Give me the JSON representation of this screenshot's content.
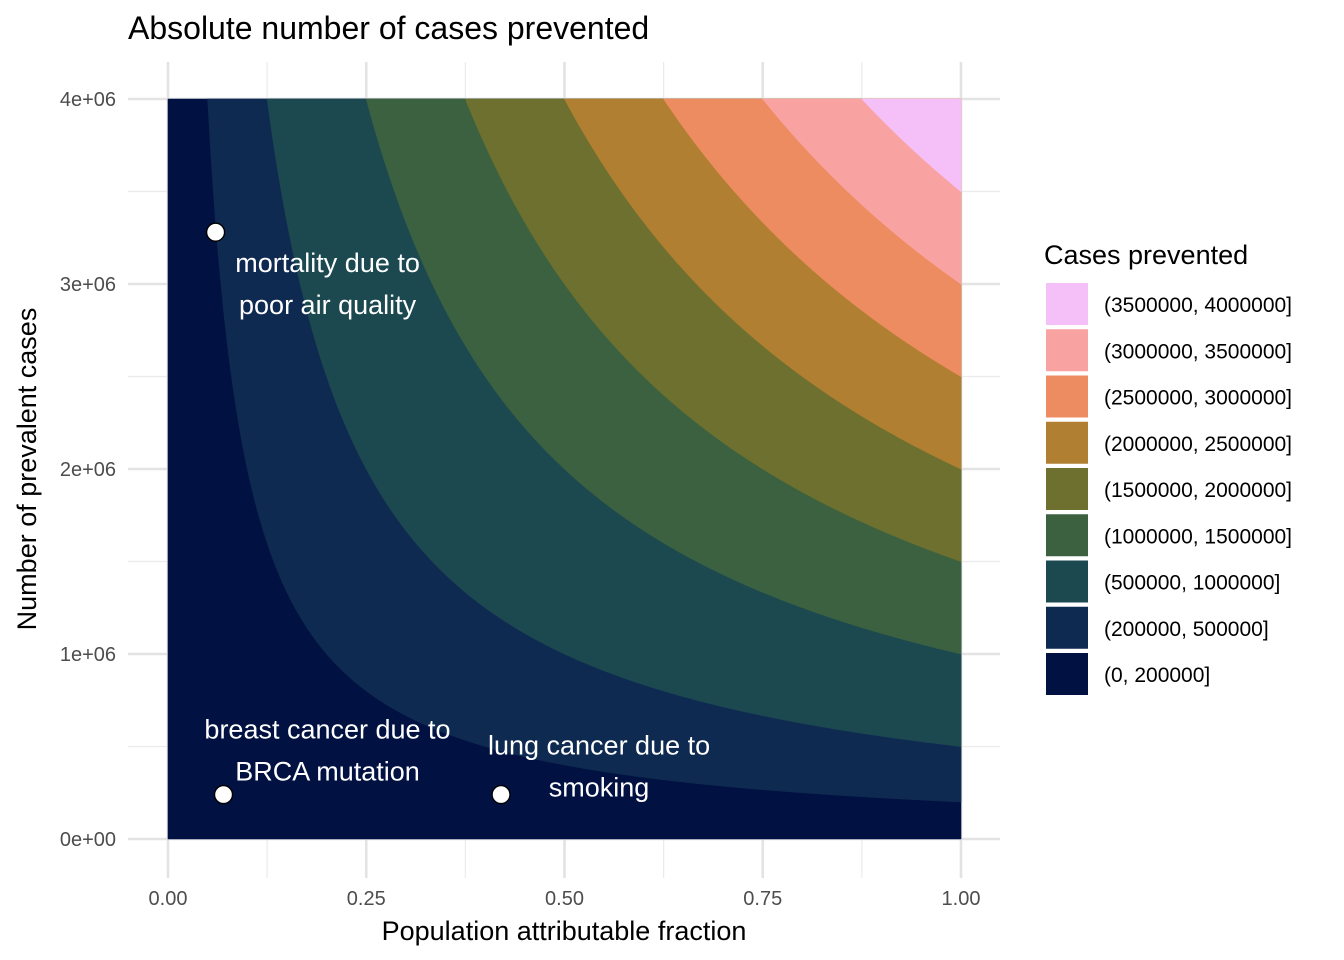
{
  "chart_data": {
    "type": "filled-contour",
    "title": "Absolute number of cases prevented",
    "xlabel": "Population attributable fraction",
    "ylabel": "Number of prevalent cases",
    "xlim": [
      0,
      1
    ],
    "ylim": [
      0,
      4000000
    ],
    "x_ticks": [
      {
        "value": 0,
        "label": "0.00"
      },
      {
        "value": 0.25,
        "label": "0.25"
      },
      {
        "value": 0.5,
        "label": "0.50"
      },
      {
        "value": 0.75,
        "label": "0.75"
      },
      {
        "value": 1,
        "label": "1.00"
      }
    ],
    "y_ticks": [
      {
        "value": 0,
        "label": "0e+00"
      },
      {
        "value": 1000000,
        "label": "1e+06"
      },
      {
        "value": 2000000,
        "label": "2e+06"
      },
      {
        "value": 3000000,
        "label": "3e+06"
      },
      {
        "value": 4000000,
        "label": "4e+06"
      }
    ],
    "x_minor_gridlines": [
      0.125,
      0.375,
      0.625,
      0.875
    ],
    "y_minor_gridlines": [
      500000,
      1500000,
      2500000,
      3500000
    ],
    "grid": true,
    "z_formula": "x * y",
    "legend_title": "Cases prevented",
    "legend_position": "right",
    "bands": [
      {
        "label": "(0, 200000]",
        "lo": 0,
        "hi": 200000,
        "color": "#001142"
      },
      {
        "label": "(200000, 500000]",
        "lo": 200000,
        "hi": 500000,
        "color": "#0F2A50"
      },
      {
        "label": "(500000, 1000000]",
        "lo": 500000,
        "hi": 1000000,
        "color": "#1C4850"
      },
      {
        "label": "(1000000, 1500000]",
        "lo": 1000000,
        "hi": 1500000,
        "color": "#3C6140"
      },
      {
        "label": "(1500000, 2000000]",
        "lo": 1500000,
        "hi": 2000000,
        "color": "#6D702E"
      },
      {
        "label": "(2000000, 2500000]",
        "lo": 2000000,
        "hi": 2500000,
        "color": "#B17F31"
      },
      {
        "label": "(2500000, 3000000]",
        "lo": 2500000,
        "hi": 3000000,
        "color": "#EC8C60"
      },
      {
        "label": "(3000000, 3500000]",
        "lo": 3000000,
        "hi": 3500000,
        "color": "#F9A2A2"
      },
      {
        "label": "(3500000, 4000000]",
        "lo": 3500000,
        "hi": 4000000,
        "color": "#F5BFF7"
      }
    ],
    "points": [
      {
        "x": 0.06,
        "y": 3280000,
        "label_lines": [
          "mortality due to",
          "poor air quality"
        ]
      },
      {
        "x": 0.07,
        "y": 240000,
        "label_lines": [
          "breast cancer due to",
          "BRCA mutation"
        ]
      },
      {
        "x": 0.42,
        "y": 240000,
        "label_lines": [
          "lung cancer due to",
          "smoking"
        ]
      }
    ]
  }
}
